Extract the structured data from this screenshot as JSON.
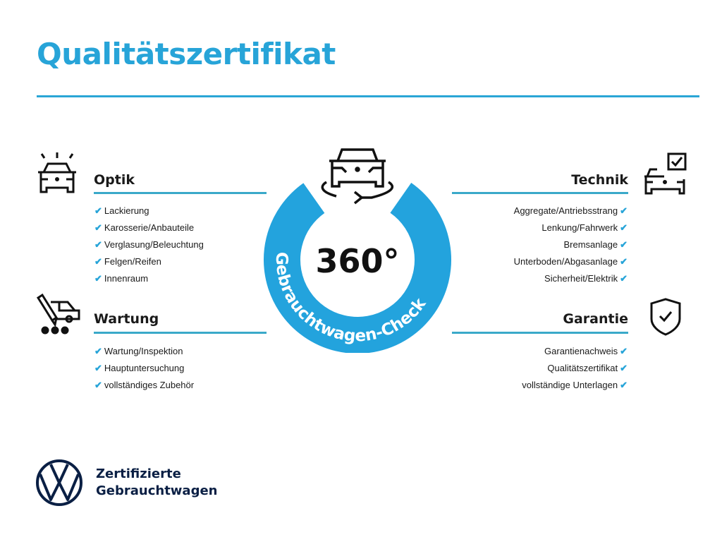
{
  "title": "Qualitätszertifikat",
  "colors": {
    "accent": "#27a4d8",
    "ring": "#23a3dd",
    "logo": "#0a1f44"
  },
  "center": {
    "value": "360°",
    "ring_text": "Gebrauchtwagen-Check",
    "icon": "car-rotate-icon"
  },
  "sections": {
    "optik": {
      "title": "Optik",
      "icon": "car-lights-icon",
      "items": [
        "Lackierung",
        "Karosserie/Anbauteile",
        "Verglasung/Beleuchtung",
        "Felgen/Reifen",
        "Innenraum"
      ]
    },
    "wartung": {
      "title": "Wartung",
      "icon": "service-van-icon",
      "items": [
        "Wartung/Inspektion",
        "Hauptuntersuchung",
        "vollständiges Zubehör"
      ]
    },
    "technik": {
      "title": "Technik",
      "icon": "car-checklist-icon",
      "items": [
        "Aggregate/Antriebsstrang",
        "Lenkung/Fahrwerk",
        "Bremsanlage",
        "Unterboden/Abgasanlage",
        "Sicherheit/Elektrik"
      ]
    },
    "garantie": {
      "title": "Garantie",
      "icon": "shield-check-icon",
      "items": [
        "Garantienachweis",
        "Qualitätszertifikat",
        "vollständige Unterlagen"
      ]
    }
  },
  "check_glyph": "✔",
  "footer": {
    "line1": "Zertifizierte",
    "line2": "Gebrauchtwagen",
    "logo": "vw-logo"
  }
}
